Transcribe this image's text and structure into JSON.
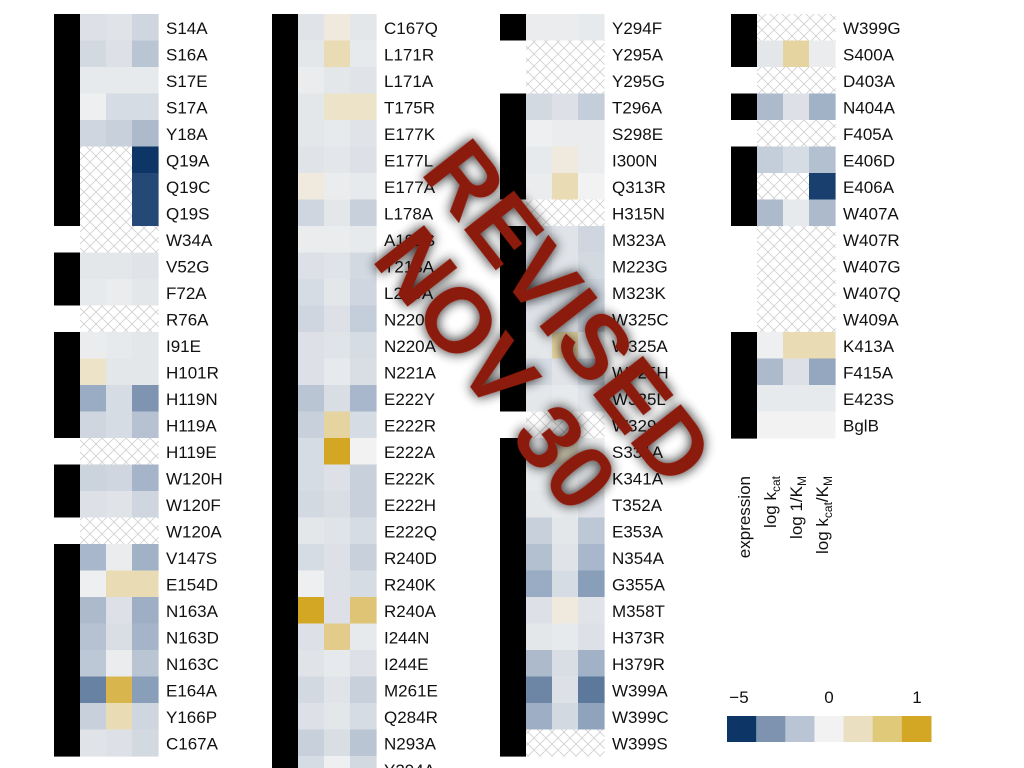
{
  "chart_data": {
    "type": "heatmap",
    "title": "",
    "columns": [
      "expression",
      "log k_cat",
      "log 1/K_M",
      "log k_cat/K_M"
    ],
    "column_labels": [
      {
        "main": "expression",
        "sub": ""
      },
      {
        "main": "log k",
        "sub": "cat",
        "suffix": ""
      },
      {
        "main": "log 1/K",
        "sub": "M",
        "suffix": ""
      },
      {
        "main": "log k",
        "sub": "cat",
        "suffix": "/K",
        "sub2": "M"
      }
    ],
    "colorbar": {
      "ticks": [
        "−5",
        "0",
        "1"
      ],
      "tick_values": [
        -5,
        0,
        1
      ],
      "colors": [
        "#0d3667",
        "#7d93b0",
        "#b9c4d4",
        "#f2f2f2",
        "#eadfc0",
        "#e0c979",
        "#d3a624"
      ]
    },
    "colors": {
      "expressed": "#000000",
      "not_expressed": "#ffffff",
      "missing_hatch": "#cfcfcf"
    },
    "legend_note": "expression column: black = expressed, white = not expressed; crosshatched cells = not measured",
    "rows": [
      {
        "label": "S14A",
        "expression": 1,
        "kcat": -0.6,
        "km": -0.5,
        "kcat_km": -1.0
      },
      {
        "label": "S16A",
        "expression": 1,
        "kcat": -0.9,
        "km": -0.6,
        "kcat_km": -1.6
      },
      {
        "label": "S17E",
        "expression": 1,
        "kcat": -0.3,
        "km": -0.3,
        "kcat_km": -0.3
      },
      {
        "label": "S17A",
        "expression": 1,
        "kcat": -0.1,
        "km": -0.8,
        "kcat_km": -0.8
      },
      {
        "label": "Y18A",
        "expression": 1,
        "kcat": -1.0,
        "km": -1.2,
        "kcat_km": -2.0
      },
      {
        "label": "Q19A",
        "expression": 1,
        "kcat": null,
        "km": null,
        "kcat_km": -5.0
      },
      {
        "label": "Q19C",
        "expression": 1,
        "kcat": null,
        "km": null,
        "kcat_km": -4.6
      },
      {
        "label": "Q19S",
        "expression": 1,
        "kcat": null,
        "km": null,
        "kcat_km": -4.6
      },
      {
        "label": "W34A",
        "expression": 0,
        "kcat": null,
        "km": null,
        "kcat_km": null
      },
      {
        "label": "V52G",
        "expression": 1,
        "kcat": -0.4,
        "km": -0.4,
        "kcat_km": -0.5
      },
      {
        "label": "F72A",
        "expression": 1,
        "kcat": -0.3,
        "km": -0.2,
        "kcat_km": -0.4
      },
      {
        "label": "R76A",
        "expression": 0,
        "kcat": null,
        "km": null,
        "kcat_km": null
      },
      {
        "label": "I91E",
        "expression": 1,
        "kcat": -0.2,
        "km": -0.3,
        "kcat_km": -0.4
      },
      {
        "label": "H101R",
        "expression": 1,
        "kcat": 0.2,
        "km": -0.4,
        "kcat_km": -0.4
      },
      {
        "label": "H119N",
        "expression": 1,
        "kcat": -2.5,
        "km": -0.8,
        "kcat_km": -3.0
      },
      {
        "label": "H119A",
        "expression": 1,
        "kcat": -1.0,
        "km": -0.8,
        "kcat_km": -1.7
      },
      {
        "label": "H119E",
        "expression": 0,
        "kcat": null,
        "km": null,
        "kcat_km": null
      },
      {
        "label": "W120H",
        "expression": 1,
        "kcat": -1.1,
        "km": -1.0,
        "kcat_km": -2.2
      },
      {
        "label": "W120F",
        "expression": 1,
        "kcat": -0.6,
        "km": -0.5,
        "kcat_km": -1.0
      },
      {
        "label": "W120A",
        "expression": 0,
        "kcat": null,
        "km": null,
        "kcat_km": null
      },
      {
        "label": "V147S",
        "expression": 1,
        "kcat": -2.1,
        "km": -0.2,
        "kcat_km": -2.3
      },
      {
        "label": "E154D",
        "expression": 1,
        "kcat": -0.1,
        "km": 0.3,
        "kcat_km": 0.3
      },
      {
        "label": "N163A",
        "expression": 1,
        "kcat": -2.0,
        "km": -0.6,
        "kcat_km": -2.4
      },
      {
        "label": "N163D",
        "expression": 1,
        "kcat": -1.7,
        "km": -0.7,
        "kcat_km": -2.2
      },
      {
        "label": "N163C",
        "expression": 1,
        "kcat": -1.5,
        "km": -0.2,
        "kcat_km": -1.6
      },
      {
        "label": "E164A",
        "expression": 1,
        "kcat": -3.4,
        "km": 0.8,
        "kcat_km": -2.8
      },
      {
        "label": "Y166P",
        "expression": 1,
        "kcat": -1.2,
        "km": 0.3,
        "kcat_km": -1.0
      },
      {
        "label": "C167A",
        "expression": 1,
        "kcat": -0.5,
        "km": -0.6,
        "kcat_km": -0.9
      },
      {
        "label": "C167Q",
        "expression": 1,
        "kcat": -0.5,
        "km": 0.1,
        "kcat_km": -0.4
      },
      {
        "label": "L171R",
        "expression": 1,
        "kcat": -0.4,
        "km": 0.3,
        "kcat_km": -0.3
      },
      {
        "label": "L171A",
        "expression": 1,
        "kcat": -0.2,
        "km": -0.4,
        "kcat_km": -0.5
      },
      {
        "label": "T175R",
        "expression": 1,
        "kcat": -0.4,
        "km": 0.2,
        "kcat_km": 0.2
      },
      {
        "label": "E177K",
        "expression": 1,
        "kcat": -0.4,
        "km": -0.3,
        "kcat_km": -0.5
      },
      {
        "label": "E177L",
        "expression": 1,
        "kcat": -0.5,
        "km": -0.4,
        "kcat_km": -0.6
      },
      {
        "label": "E177A",
        "expression": 1,
        "kcat": 0.1,
        "km": -0.2,
        "kcat_km": -0.3
      },
      {
        "label": "L178A",
        "expression": 1,
        "kcat": -1.0,
        "km": -0.4,
        "kcat_km": -1.2
      },
      {
        "label": "A192S",
        "expression": 1,
        "kcat": -0.2,
        "km": -0.2,
        "kcat_km": -0.3
      },
      {
        "label": "T218A",
        "expression": 1,
        "kcat": -0.6,
        "km": -0.5,
        "kcat_km": -0.9
      },
      {
        "label": "L219A",
        "expression": 1,
        "kcat": -0.8,
        "km": -0.4,
        "kcat_km": -1.0
      },
      {
        "label": "N220H",
        "expression": 1,
        "kcat": -1.0,
        "km": -0.6,
        "kcat_km": -1.3
      },
      {
        "label": "N220A",
        "expression": 1,
        "kcat": -0.6,
        "km": -0.5,
        "kcat_km": -0.8
      },
      {
        "label": "N221A",
        "expression": 1,
        "kcat": -0.6,
        "km": -0.3,
        "kcat_km": -0.7
      },
      {
        "label": "E222Y",
        "expression": 1,
        "kcat": -1.6,
        "km": -0.7,
        "kcat_km": -2.1
      },
      {
        "label": "E222R",
        "expression": 1,
        "kcat": -1.2,
        "km": 0.4,
        "kcat_km": -0.8
      },
      {
        "label": "E222A",
        "expression": 1,
        "kcat": -0.8,
        "km": 1.0,
        "kcat_km": 0.0
      },
      {
        "label": "E222K",
        "expression": 1,
        "kcat": -0.8,
        "km": -0.6,
        "kcat_km": -1.2
      },
      {
        "label": "E222H",
        "expression": 1,
        "kcat": -0.9,
        "km": -0.7,
        "kcat_km": -1.2
      },
      {
        "label": "E222Q",
        "expression": 1,
        "kcat": -0.4,
        "km": -0.5,
        "kcat_km": -0.8
      },
      {
        "label": "R240D",
        "expression": 1,
        "kcat": -0.8,
        "km": -0.6,
        "kcat_km": -1.2
      },
      {
        "label": "R240K",
        "expression": 1,
        "kcat": -0.1,
        "km": -0.6,
        "kcat_km": -0.8
      },
      {
        "label": "R240A",
        "expression": 1,
        "kcat": 1.0,
        "km": -0.6,
        "kcat_km": 0.6
      },
      {
        "label": "I244N",
        "expression": 1,
        "kcat": -0.6,
        "km": 0.5,
        "kcat_km": -0.3
      },
      {
        "label": "I244E",
        "expression": 1,
        "kcat": -0.5,
        "km": -0.3,
        "kcat_km": -0.6
      },
      {
        "label": "M261E",
        "expression": 1,
        "kcat": -0.9,
        "km": -0.5,
        "kcat_km": -1.2
      },
      {
        "label": "Q284R",
        "expression": 1,
        "kcat": -0.6,
        "km": -0.4,
        "kcat_km": -0.8
      },
      {
        "label": "N293A",
        "expression": 1,
        "kcat": -1.2,
        "km": -0.7,
        "kcat_km": -1.6
      },
      {
        "label": "Y294A",
        "expression": 1,
        "kcat": -0.8,
        "km": -0.1,
        "kcat_km": -0.9
      },
      {
        "label": "Y294F",
        "expression": 1,
        "kcat": -0.2,
        "km": -0.2,
        "kcat_km": -0.3
      },
      {
        "label": "Y295A",
        "expression": 0,
        "kcat": null,
        "km": null,
        "kcat_km": null
      },
      {
        "label": "Y295G",
        "expression": 0,
        "kcat": null,
        "km": null,
        "kcat_km": null
      },
      {
        "label": "T296A",
        "expression": 1,
        "kcat": -0.9,
        "km": -0.6,
        "kcat_km": -1.3
      },
      {
        "label": "S298E",
        "expression": 1,
        "kcat": -0.1,
        "km": -0.2,
        "kcat_km": -0.2
      },
      {
        "label": "I300N",
        "expression": 1,
        "kcat": -0.3,
        "km": 0.1,
        "kcat_km": -0.2
      },
      {
        "label": "Q313R",
        "expression": 1,
        "kcat": -0.2,
        "km": 0.3,
        "kcat_km": 0.0
      },
      {
        "label": "H315N",
        "expression": 0,
        "kcat": null,
        "km": null,
        "kcat_km": null
      },
      {
        "label": "M323A",
        "expression": 1,
        "kcat": -0.7,
        "km": -0.5,
        "kcat_km": -1.0
      },
      {
        "label": "M223G",
        "expression": 1,
        "kcat": -0.7,
        "km": -0.5,
        "kcat_km": -0.9
      },
      {
        "label": "M323K",
        "expression": 1,
        "kcat": -0.8,
        "km": -0.6,
        "kcat_km": -1.1
      },
      {
        "label": "W325C",
        "expression": 1,
        "kcat": -0.6,
        "km": -0.6,
        "kcat_km": -1.1
      },
      {
        "label": "W325A",
        "expression": 1,
        "kcat": -0.4,
        "km": 0.4,
        "kcat_km": -0.2
      },
      {
        "label": "W325H",
        "expression": 1,
        "kcat": -0.8,
        "km": -0.5,
        "kcat_km": -1.0
      },
      {
        "label": "W325L",
        "expression": 1,
        "kcat": -0.4,
        "km": -0.3,
        "kcat_km": -0.5
      },
      {
        "label": "W329A",
        "expression": 0,
        "kcat": null,
        "km": null,
        "kcat_km": null
      },
      {
        "label": "S331A",
        "expression": 1,
        "kcat": -0.2,
        "km": 0.2,
        "kcat_km": -0.1
      },
      {
        "label": "K341A",
        "expression": 1,
        "kcat": -0.3,
        "km": -0.2,
        "kcat_km": -0.4
      },
      {
        "label": "T352A",
        "expression": 1,
        "kcat": -0.4,
        "km": -0.3,
        "kcat_km": -0.6
      },
      {
        "label": "E353A",
        "expression": 1,
        "kcat": -1.2,
        "km": -0.4,
        "kcat_km": -1.5
      },
      {
        "label": "N354A",
        "expression": 1,
        "kcat": -1.8,
        "km": -0.5,
        "kcat_km": -2.1
      },
      {
        "label": "G355A",
        "expression": 1,
        "kcat": -2.5,
        "km": -0.8,
        "kcat_km": -2.8
      },
      {
        "label": "M358T",
        "expression": 1,
        "kcat": -0.6,
        "km": 0.1,
        "kcat_km": -0.5
      },
      {
        "label": "H373R",
        "expression": 1,
        "kcat": -0.4,
        "km": -0.3,
        "kcat_km": -0.6
      },
      {
        "label": "H379R",
        "expression": 1,
        "kcat": -2.0,
        "km": -0.7,
        "kcat_km": -2.3
      },
      {
        "label": "W399A",
        "expression": 1,
        "kcat": -3.3,
        "km": -0.6,
        "kcat_km": -3.6
      },
      {
        "label": "W399C",
        "expression": 1,
        "kcat": -2.4,
        "km": -0.9,
        "kcat_km": -2.7
      },
      {
        "label": "W399S",
        "expression": 1,
        "kcat": null,
        "km": null,
        "kcat_km": null
      },
      {
        "label": "W399G",
        "expression": 1,
        "kcat": null,
        "km": null,
        "kcat_km": null
      },
      {
        "label": "S400A",
        "expression": 1,
        "kcat": -0.4,
        "km": 0.4,
        "kcat_km": -0.2
      },
      {
        "label": "D403A",
        "expression": 0,
        "kcat": null,
        "km": null,
        "kcat_km": null
      },
      {
        "label": "N404A",
        "expression": 1,
        "kcat": -2.0,
        "km": -0.6,
        "kcat_km": -2.3
      },
      {
        "label": "F405A",
        "expression": 0,
        "kcat": null,
        "km": null,
        "kcat_km": null
      },
      {
        "label": "E406D",
        "expression": 1,
        "kcat": -1.3,
        "km": -0.8,
        "kcat_km": -1.8
      },
      {
        "label": "E406A",
        "expression": 1,
        "kcat": null,
        "km": null,
        "kcat_km": -4.8
      },
      {
        "label": "W407A",
        "expression": 1,
        "kcat": -2.0,
        "km": -0.3,
        "kcat_km": -2.0
      },
      {
        "label": "W407R",
        "expression": 0,
        "kcat": null,
        "km": null,
        "kcat_km": null
      },
      {
        "label": "W407G",
        "expression": 0,
        "kcat": null,
        "km": null,
        "kcat_km": null
      },
      {
        "label": "W407Q",
        "expression": 0,
        "kcat": null,
        "km": null,
        "kcat_km": null
      },
      {
        "label": "W409A",
        "expression": 0,
        "kcat": null,
        "km": null,
        "kcat_km": null
      },
      {
        "label": "K413A",
        "expression": 1,
        "kcat": -0.1,
        "km": 0.3,
        "kcat_km": 0.3
      },
      {
        "label": "F415A",
        "expression": 1,
        "kcat": -2.0,
        "km": -0.6,
        "kcat_km": -2.6
      },
      {
        "label": "E423S",
        "expression": 1,
        "kcat": -0.3,
        "km": -0.3,
        "kcat_km": -0.3
      },
      {
        "label": "BglB",
        "expression": 1,
        "kcat": 0.0,
        "km": 0.0,
        "kcat_km": 0.0
      }
    ]
  },
  "watermark": {
    "line1": "REVISED",
    "line2": "NOV 30",
    "color": "#8b1a0e"
  }
}
